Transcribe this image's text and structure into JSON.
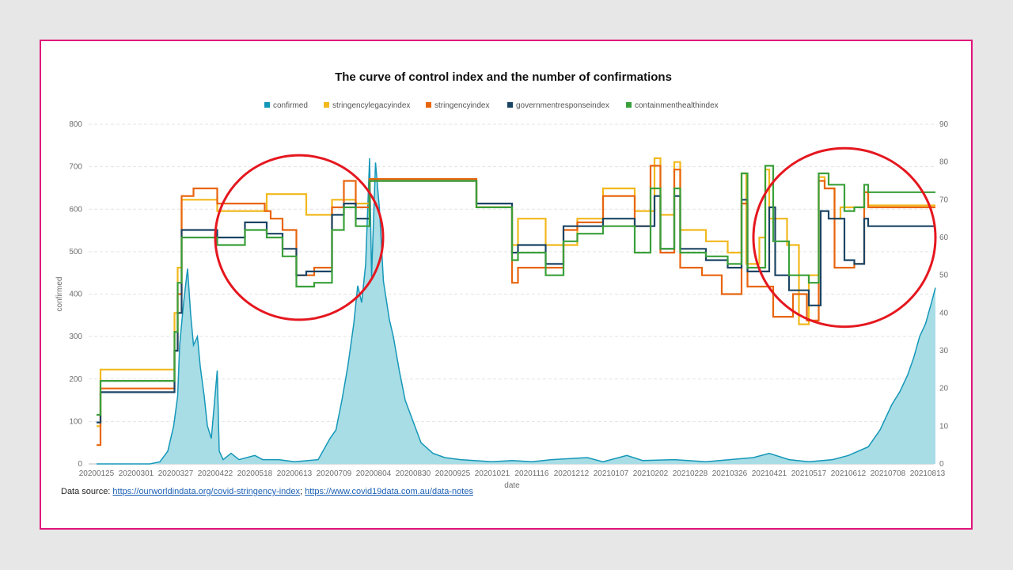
{
  "chart_data": {
    "type": "line",
    "title": "The curve of control index and the number of confirmations",
    "xlabel": "date",
    "ylabel": "confirmed",
    "ylabel_right": "",
    "ylim": [
      0,
      800
    ],
    "ylim_right": [
      0,
      90
    ],
    "yticks": [
      0,
      100,
      200,
      300,
      400,
      500,
      600,
      700,
      800
    ],
    "yticks_right": [
      0,
      10,
      20,
      30,
      40,
      50,
      60,
      70,
      80,
      90
    ],
    "x_ticks": [
      "20200125",
      "20200301",
      "20200327",
      "20200422",
      "20200518",
      "20200613",
      "20200709",
      "20200804",
      "20200830",
      "20200925",
      "20201021",
      "20201116",
      "20201212",
      "20210107",
      "20210202",
      "20210228",
      "20210326",
      "20210421",
      "20210517",
      "20210612",
      "20210708",
      "20210813"
    ],
    "grid": true,
    "legend_position": "top-center",
    "series": [
      {
        "name": "confirmed",
        "axis": "left",
        "kind": "area",
        "color": "#1497b8",
        "points": [
          [
            0,
            0
          ],
          [
            1.35,
            0
          ],
          [
            1.6,
            5
          ],
          [
            1.8,
            30
          ],
          [
            1.95,
            90
          ],
          [
            2.05,
            160
          ],
          [
            2.1,
            280
          ],
          [
            2.2,
            380
          ],
          [
            2.3,
            460
          ],
          [
            2.38,
            350
          ],
          [
            2.45,
            280
          ],
          [
            2.55,
            300
          ],
          [
            2.62,
            230
          ],
          [
            2.72,
            160
          ],
          [
            2.8,
            90
          ],
          [
            2.9,
            60
          ],
          [
            3.05,
            220
          ],
          [
            3.1,
            30
          ],
          [
            3.2,
            10
          ],
          [
            3.4,
            25
          ],
          [
            3.6,
            10
          ],
          [
            4.0,
            20
          ],
          [
            4.2,
            10
          ],
          [
            4.6,
            10
          ],
          [
            5.0,
            5
          ],
          [
            5.6,
            10
          ],
          [
            5.9,
            60
          ],
          [
            6.05,
            80
          ],
          [
            6.2,
            150
          ],
          [
            6.35,
            230
          ],
          [
            6.5,
            330
          ],
          [
            6.6,
            420
          ],
          [
            6.7,
            380
          ],
          [
            6.8,
            470
          ],
          [
            6.9,
            720
          ],
          [
            6.95,
            440
          ],
          [
            7.05,
            710
          ],
          [
            7.15,
            600
          ],
          [
            7.25,
            430
          ],
          [
            7.4,
            340
          ],
          [
            7.5,
            300
          ],
          [
            7.65,
            220
          ],
          [
            7.8,
            150
          ],
          [
            8.0,
            100
          ],
          [
            8.2,
            50
          ],
          [
            8.5,
            25
          ],
          [
            8.8,
            15
          ],
          [
            9.2,
            10
          ],
          [
            10.0,
            5
          ],
          [
            10.5,
            8
          ],
          [
            11.0,
            5
          ],
          [
            11.5,
            10
          ],
          [
            12.4,
            15
          ],
          [
            12.8,
            5
          ],
          [
            13.4,
            20
          ],
          [
            13.8,
            8
          ],
          [
            14.6,
            10
          ],
          [
            15.4,
            5
          ],
          [
            16.0,
            10
          ],
          [
            16.6,
            15
          ],
          [
            17.0,
            25
          ],
          [
            17.5,
            10
          ],
          [
            18.0,
            5
          ],
          [
            18.6,
            10
          ],
          [
            19.0,
            20
          ],
          [
            19.5,
            40
          ],
          [
            19.8,
            80
          ],
          [
            20.1,
            140
          ],
          [
            20.3,
            170
          ],
          [
            20.5,
            210
          ],
          [
            20.65,
            250
          ],
          [
            20.8,
            300
          ],
          [
            20.95,
            330
          ],
          [
            21.1,
            380
          ],
          [
            21.2,
            415
          ]
        ]
      },
      {
        "name": "stringencylegacyindex",
        "axis": "right",
        "kind": "step",
        "color": "#f2b81c",
        "points": [
          [
            0,
            10
          ],
          [
            0.1,
            25
          ],
          [
            1.9,
            25
          ],
          [
            1.97,
            40
          ],
          [
            2.05,
            52
          ],
          [
            2.15,
            70
          ],
          [
            3.05,
            67
          ],
          [
            4.05,
            67
          ],
          [
            4.3,
            71.5
          ],
          [
            5.3,
            66
          ],
          [
            5.95,
            70
          ],
          [
            6.15,
            70
          ],
          [
            6.55,
            69
          ],
          [
            6.9,
            75
          ],
          [
            9.6,
            68
          ],
          [
            10.5,
            58
          ],
          [
            10.65,
            65
          ],
          [
            11.35,
            58
          ],
          [
            12.15,
            65
          ],
          [
            12.8,
            73
          ],
          [
            13.6,
            67
          ],
          [
            14.1,
            81
          ],
          [
            14.25,
            66
          ],
          [
            14.6,
            80
          ],
          [
            14.75,
            62
          ],
          [
            15.4,
            59
          ],
          [
            15.95,
            56
          ],
          [
            16.3,
            77
          ],
          [
            16.42,
            53
          ],
          [
            16.75,
            60
          ],
          [
            16.9,
            78
          ],
          [
            17.0,
            65
          ],
          [
            17.45,
            58
          ],
          [
            17.75,
            37
          ],
          [
            18.0,
            50
          ],
          [
            18.25,
            76
          ],
          [
            18.4,
            73
          ],
          [
            18.65,
            65
          ],
          [
            18.8,
            68
          ],
          [
            19.25,
            68
          ],
          [
            19.4,
            72
          ],
          [
            19.5,
            68.5
          ],
          [
            21.2,
            68.5
          ]
        ]
      },
      {
        "name": "stringencyindex",
        "axis": "right",
        "kind": "step",
        "color": "#e8650e",
        "points": [
          [
            0,
            5
          ],
          [
            0.1,
            20
          ],
          [
            1.9,
            20
          ],
          [
            1.97,
            30
          ],
          [
            2.05,
            45
          ],
          [
            2.15,
            71
          ],
          [
            2.45,
            73
          ],
          [
            3.05,
            69
          ],
          [
            4.05,
            69
          ],
          [
            4.25,
            67
          ],
          [
            4.4,
            65
          ],
          [
            4.7,
            62
          ],
          [
            5.05,
            50
          ],
          [
            5.5,
            52
          ],
          [
            5.95,
            68
          ],
          [
            6.25,
            75
          ],
          [
            6.55,
            68
          ],
          [
            6.9,
            75.5
          ],
          [
            9.6,
            68
          ],
          [
            10.5,
            48
          ],
          [
            10.65,
            52
          ],
          [
            11.35,
            52
          ],
          [
            11.8,
            62
          ],
          [
            12.15,
            64
          ],
          [
            12.8,
            71
          ],
          [
            13.6,
            63
          ],
          [
            14.0,
            79
          ],
          [
            14.25,
            56
          ],
          [
            14.6,
            78
          ],
          [
            14.75,
            52
          ],
          [
            15.3,
            50
          ],
          [
            15.8,
            45
          ],
          [
            16.3,
            69
          ],
          [
            16.45,
            47
          ],
          [
            17.1,
            39
          ],
          [
            17.6,
            45
          ],
          [
            17.95,
            38
          ],
          [
            18.25,
            75
          ],
          [
            18.4,
            73
          ],
          [
            18.65,
            52
          ],
          [
            19.15,
            53
          ],
          [
            19.4,
            72
          ],
          [
            19.5,
            68
          ],
          [
            21.2,
            68
          ]
        ]
      },
      {
        "name": "governmentresponseindex",
        "axis": "right",
        "kind": "step",
        "color": "#1b4565",
        "points": [
          [
            0,
            11
          ],
          [
            0.1,
            19
          ],
          [
            1.9,
            19
          ],
          [
            1.97,
            30
          ],
          [
            2.05,
            40
          ],
          [
            2.15,
            62
          ],
          [
            3.05,
            60
          ],
          [
            3.75,
            64
          ],
          [
            4.3,
            61
          ],
          [
            4.7,
            57
          ],
          [
            5.05,
            50
          ],
          [
            5.3,
            51
          ],
          [
            5.95,
            66
          ],
          [
            6.25,
            69
          ],
          [
            6.55,
            65
          ],
          [
            6.9,
            75
          ],
          [
            9.6,
            69
          ],
          [
            10.5,
            56
          ],
          [
            10.65,
            58
          ],
          [
            11.35,
            53
          ],
          [
            11.8,
            63
          ],
          [
            12.8,
            65
          ],
          [
            13.6,
            63
          ],
          [
            14.1,
            71
          ],
          [
            14.25,
            57
          ],
          [
            14.6,
            71
          ],
          [
            14.75,
            57
          ],
          [
            15.4,
            54
          ],
          [
            15.95,
            52
          ],
          [
            16.3,
            70
          ],
          [
            16.45,
            51
          ],
          [
            17.0,
            68
          ],
          [
            17.15,
            50
          ],
          [
            17.5,
            46
          ],
          [
            18.0,
            42
          ],
          [
            18.3,
            67
          ],
          [
            18.5,
            65
          ],
          [
            18.9,
            54
          ],
          [
            19.15,
            53
          ],
          [
            19.4,
            65
          ],
          [
            19.5,
            63
          ],
          [
            21.2,
            63
          ]
        ]
      },
      {
        "name": "containmenthealthindex",
        "axis": "right",
        "kind": "step",
        "color": "#3aa03a",
        "points": [
          [
            0,
            13
          ],
          [
            0.1,
            22
          ],
          [
            1.9,
            22
          ],
          [
            1.97,
            35
          ],
          [
            2.05,
            48
          ],
          [
            2.15,
            60
          ],
          [
            3.05,
            58
          ],
          [
            3.75,
            62
          ],
          [
            4.3,
            60
          ],
          [
            4.7,
            55
          ],
          [
            5.05,
            47
          ],
          [
            5.5,
            48
          ],
          [
            5.95,
            62
          ],
          [
            6.25,
            68
          ],
          [
            6.55,
            63
          ],
          [
            6.9,
            75
          ],
          [
            9.6,
            68
          ],
          [
            10.5,
            54
          ],
          [
            10.65,
            56
          ],
          [
            11.35,
            50
          ],
          [
            11.8,
            59
          ],
          [
            12.15,
            61
          ],
          [
            12.8,
            63
          ],
          [
            13.6,
            56
          ],
          [
            14.0,
            73
          ],
          [
            14.25,
            57
          ],
          [
            14.6,
            73
          ],
          [
            14.75,
            56
          ],
          [
            15.4,
            55
          ],
          [
            15.95,
            53
          ],
          [
            16.3,
            77
          ],
          [
            16.45,
            52
          ],
          [
            16.9,
            79
          ],
          [
            17.1,
            59
          ],
          [
            17.5,
            50
          ],
          [
            18.0,
            48
          ],
          [
            18.25,
            77
          ],
          [
            18.5,
            74
          ],
          [
            18.9,
            67
          ],
          [
            19.15,
            68
          ],
          [
            19.4,
            74
          ],
          [
            19.5,
            72
          ],
          [
            21.2,
            72
          ]
        ]
      }
    ],
    "annotations": [
      {
        "type": "circle",
        "color": "#e5171f",
        "center": [
          5.12,
          60
        ],
        "radius_x_units": 2.12
      },
      {
        "type": "circle",
        "color": "#e5171f",
        "center": [
          18.9,
          60
        ],
        "radius_x_units": 2.3
      }
    ]
  },
  "source": {
    "label": "Data source: ",
    "link1": "https://ourworldindata.org/covid-stringency-index",
    "separator": "; ",
    "link2": "https://www.covid19data.com.au/data-notes"
  }
}
